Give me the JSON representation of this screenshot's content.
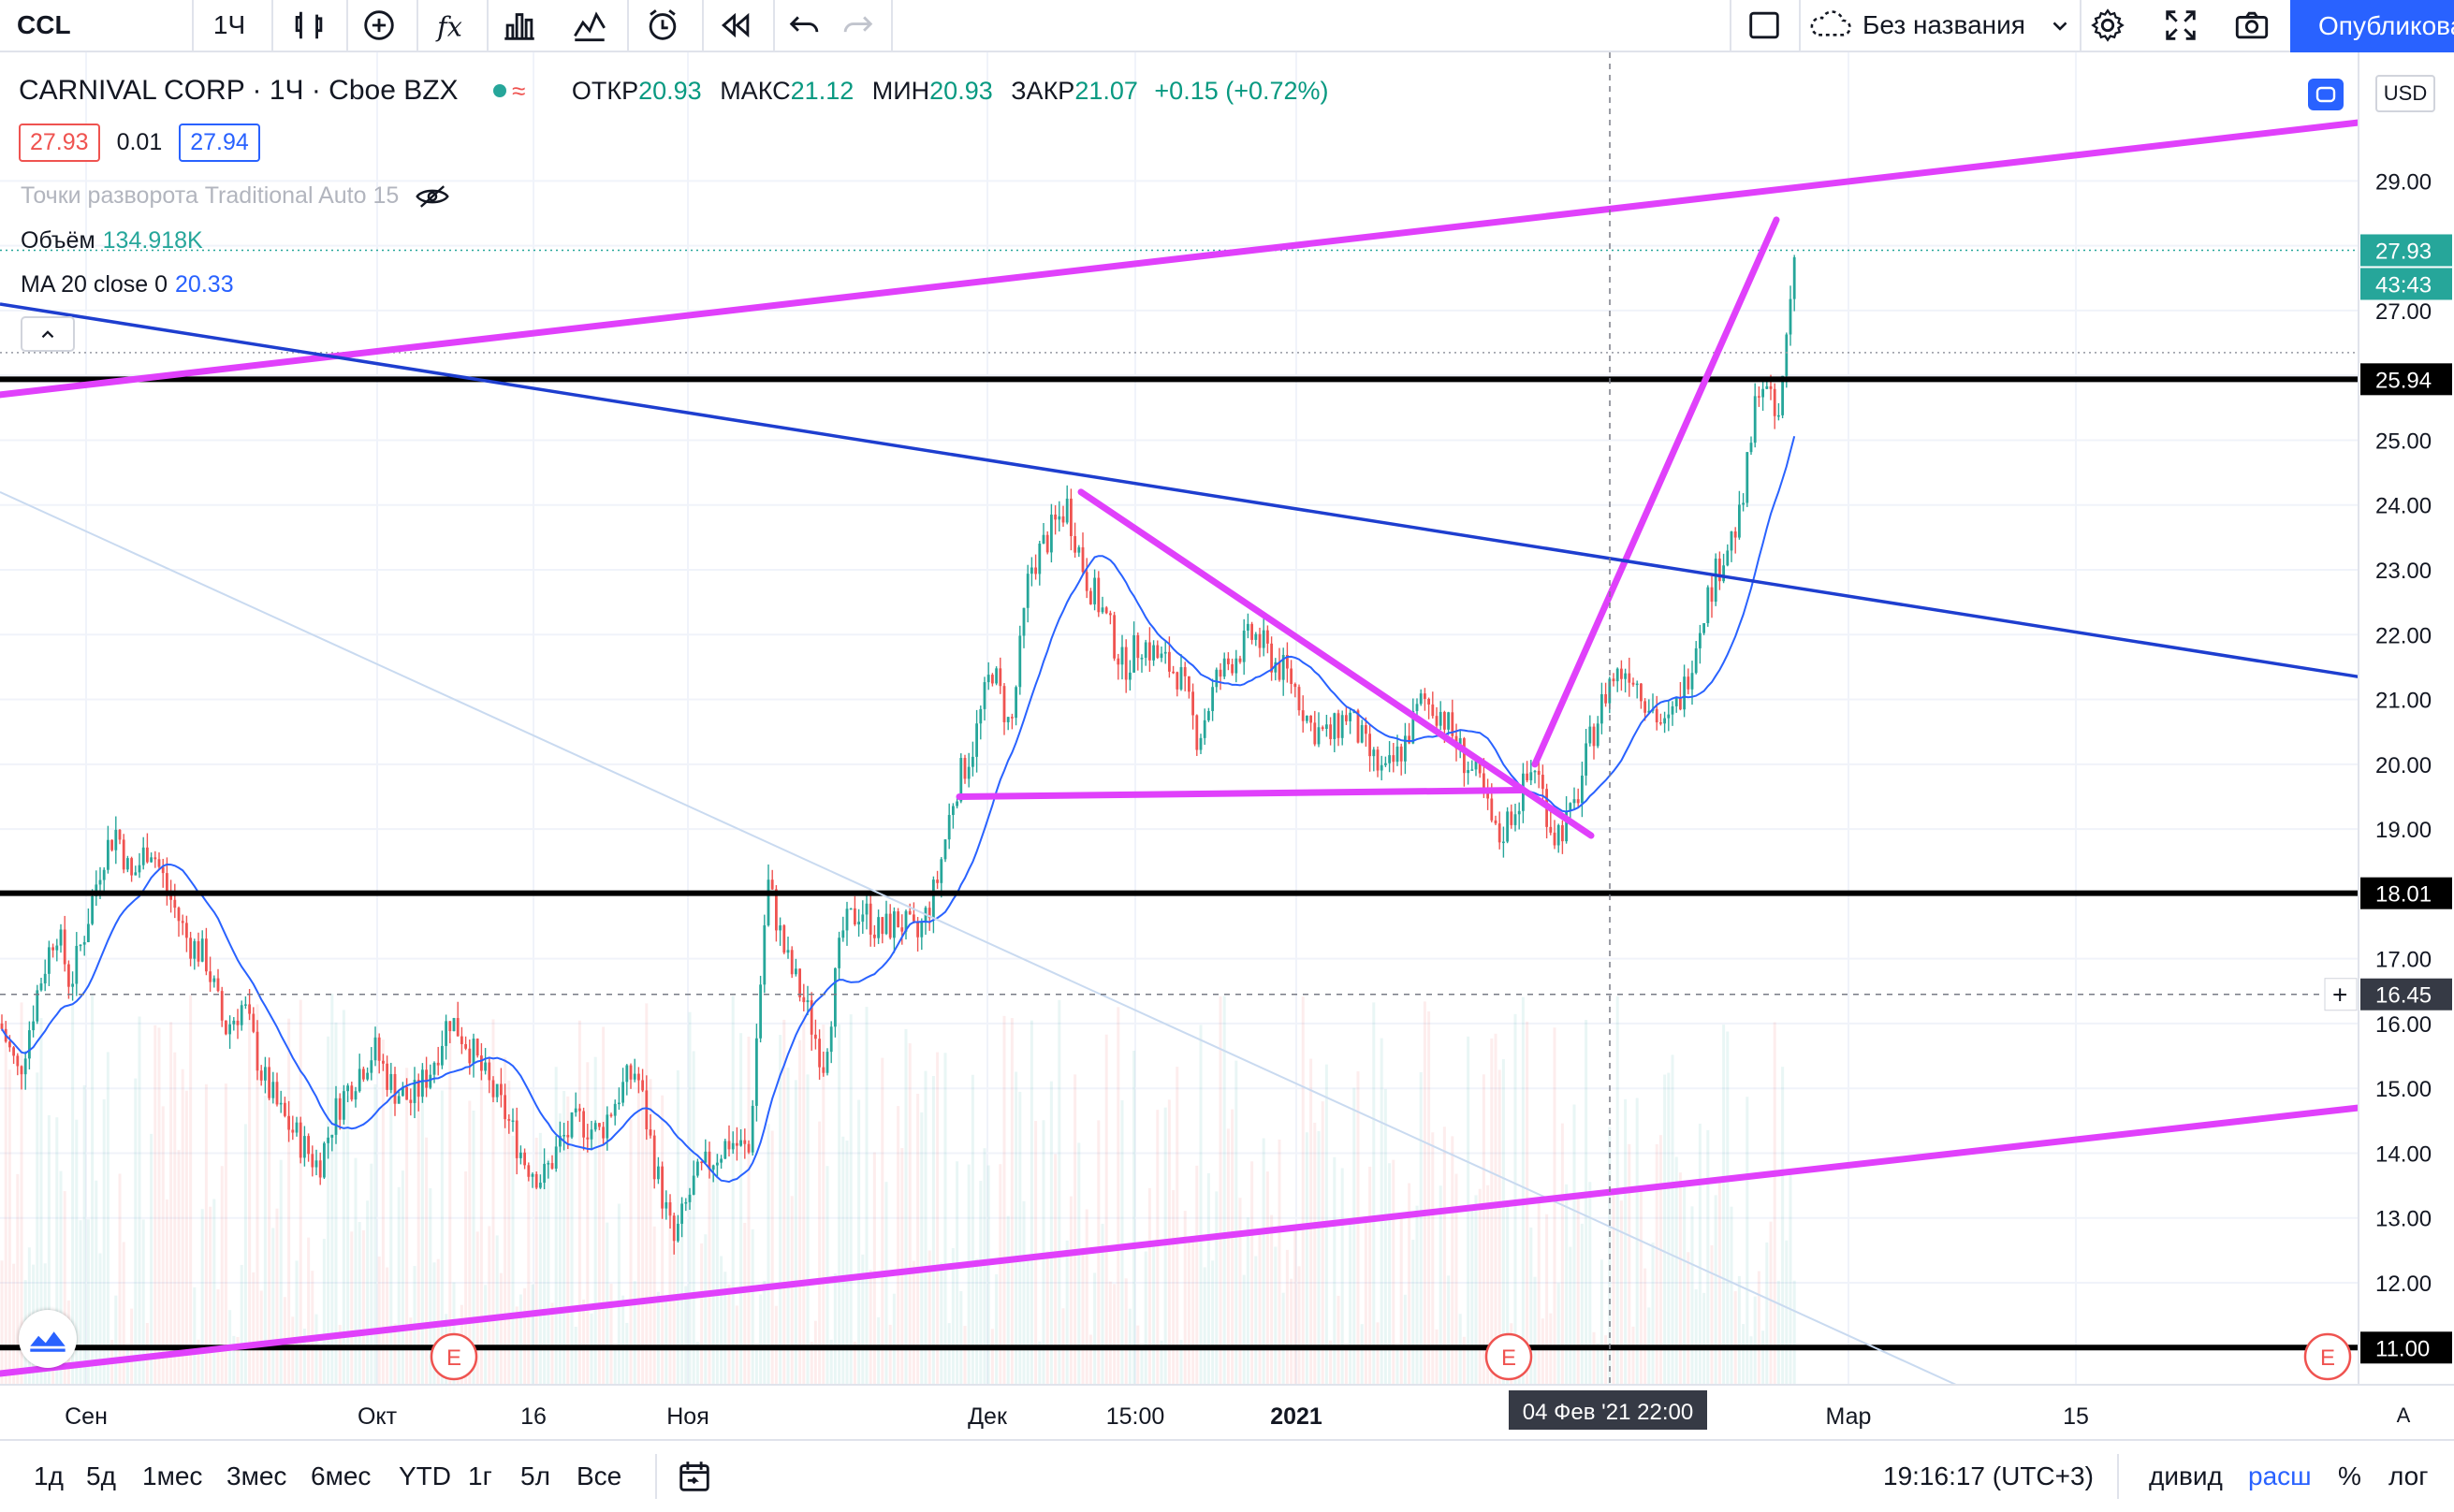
{
  "toolbar": {
    "symbol": "CCL",
    "interval": "1Ч",
    "layout_name": "Без названия",
    "publish_label": "Опубликовать",
    "icons": [
      "bar-style-icon",
      "compare-icon",
      "indicators-icon",
      "templates-icon",
      "alert-icon",
      "replay-icon",
      "undo-icon",
      "redo-icon",
      "layout-icon",
      "cloud-icon",
      "settings-icon",
      "fullscreen-icon",
      "screenshot-icon"
    ]
  },
  "legend": {
    "title": "CARNIVAL CORP · 1Ч · Cboe BZX",
    "open_label": "ОТКР",
    "open": "20.93",
    "high_label": "МАКС",
    "high": "21.12",
    "low_label": "МИН",
    "low": "20.93",
    "close_label": "ЗАКР",
    "close": "21.07",
    "change": "+0.15 (+0.72%)",
    "bid": "27.93",
    "spread": "0.01",
    "ask": "27.94"
  },
  "indicators": {
    "pivot": "Точки разворота Traditional Auto 15",
    "volume_label": "Объём",
    "volume_value": "134.918K",
    "ma_label": "MA 20 close 0",
    "ma_value": "20.33"
  },
  "price_scale": {
    "currency": "USD",
    "current_price": "27.93",
    "countdown": "43:43",
    "crosshair_price": "16.45",
    "hline_labels": [
      "25.94",
      "18.01",
      "11.00"
    ]
  },
  "crosshair": {
    "date_label": "04 Фев '21   22:00"
  },
  "chart_data": {
    "type": "candlestick",
    "y_ticks": [
      12,
      13,
      14,
      15,
      16,
      17,
      18,
      19,
      20,
      21,
      22,
      23,
      24,
      25,
      26,
      27,
      28,
      29
    ],
    "y_tick_labels": [
      "12.00",
      "13.00",
      "14.00",
      "15.00",
      "16.00",
      "17.00",
      "18.00",
      "19.00",
      "20.00",
      "21.00",
      "22.00",
      "23.00",
      "24.00",
      "25.00",
      "26.00",
      "27.00",
      "28.00",
      "29.00"
    ],
    "ylim": [
      10.6,
      29.9
    ],
    "x_tick_labels": [
      "Сен",
      "Окт",
      "16",
      "Ноя",
      "Дек",
      "15:00",
      "2021",
      "Мар",
      "15"
    ],
    "horizontal_levels": [
      25.94,
      18.01,
      11.0
    ],
    "price_path": [
      [
        0,
        16.0
      ],
      [
        20,
        15.2
      ],
      [
        40,
        16.5
      ],
      [
        60,
        17.5
      ],
      [
        75,
        16.6
      ],
      [
        90,
        17.4
      ],
      [
        110,
        18.6
      ],
      [
        125,
        19.0
      ],
      [
        140,
        18.2
      ],
      [
        160,
        18.8
      ],
      [
        180,
        18.0
      ],
      [
        200,
        17.3
      ],
      [
        220,
        17.0
      ],
      [
        240,
        15.9
      ],
      [
        260,
        16.3
      ],
      [
        280,
        15.2
      ],
      [
        300,
        14.6
      ],
      [
        320,
        14.2
      ],
      [
        340,
        13.8
      ],
      [
        360,
        14.7
      ],
      [
        380,
        15.2
      ],
      [
        400,
        15.6
      ],
      [
        420,
        15.0
      ],
      [
        440,
        14.8
      ],
      [
        460,
        15.3
      ],
      [
        480,
        16.1
      ],
      [
        500,
        15.7
      ],
      [
        520,
        15.1
      ],
      [
        540,
        14.6
      ],
      [
        560,
        13.9
      ],
      [
        580,
        13.6
      ],
      [
        600,
        14.2
      ],
      [
        620,
        14.5
      ],
      [
        640,
        14.3
      ],
      [
        660,
        14.9
      ],
      [
        680,
        15.3
      ],
      [
        700,
        13.8
      ],
      [
        720,
        12.6
      ],
      [
        740,
        13.5
      ],
      [
        760,
        13.9
      ],
      [
        780,
        14.2
      ],
      [
        800,
        14.0
      ],
      [
        820,
        18.2
      ],
      [
        840,
        17.0
      ],
      [
        860,
        16.3
      ],
      [
        880,
        15.4
      ],
      [
        900,
        17.4
      ],
      [
        920,
        17.8
      ],
      [
        940,
        17.4
      ],
      [
        960,
        17.6
      ],
      [
        980,
        17.3
      ],
      [
        1000,
        18.1
      ],
      [
        1020,
        19.6
      ],
      [
        1040,
        20.3
      ],
      [
        1060,
        21.5
      ],
      [
        1080,
        20.5
      ],
      [
        1100,
        23.0
      ],
      [
        1120,
        23.5
      ],
      [
        1140,
        24.0
      ],
      [
        1160,
        22.9
      ],
      [
        1180,
        22.3
      ],
      [
        1200,
        21.5
      ],
      [
        1220,
        21.9
      ],
      [
        1240,
        21.6
      ],
      [
        1260,
        21.4
      ],
      [
        1280,
        20.4
      ],
      [
        1300,
        21.3
      ],
      [
        1320,
        21.7
      ],
      [
        1340,
        22.0
      ],
      [
        1360,
        21.6
      ],
      [
        1380,
        21.3
      ],
      [
        1400,
        20.6
      ],
      [
        1420,
        20.4
      ],
      [
        1440,
        20.8
      ],
      [
        1460,
        20.2
      ],
      [
        1480,
        19.8
      ],
      [
        1500,
        20.3
      ],
      [
        1520,
        21.0
      ],
      [
        1540,
        20.8
      ],
      [
        1560,
        20.2
      ],
      [
        1580,
        19.7
      ],
      [
        1600,
        18.8
      ],
      [
        1620,
        19.4
      ],
      [
        1640,
        20.0
      ],
      [
        1660,
        18.9
      ],
      [
        1680,
        19.2
      ],
      [
        1700,
        20.4
      ],
      [
        1720,
        21.3
      ],
      [
        1740,
        21.5
      ],
      [
        1760,
        21.0
      ],
      [
        1780,
        20.5
      ],
      [
        1800,
        21.2
      ],
      [
        1820,
        22.4
      ],
      [
        1840,
        23.2
      ],
      [
        1860,
        23.8
      ],
      [
        1880,
        26.0
      ],
      [
        1900,
        25.2
      ],
      [
        1910,
        26.8
      ],
      [
        1918,
        27.93
      ]
    ]
  },
  "drawings": {
    "magenta_lines": [
      [
        [
          0,
          25.7
        ],
        [
          2520,
          29.9
        ]
      ],
      [
        [
          0,
          10.6
        ],
        [
          2520,
          14.7
        ]
      ],
      [
        [
          1155,
          24.2
        ],
        [
          1700,
          18.9
        ]
      ],
      [
        [
          1025,
          19.5
        ],
        [
          1625,
          19.6
        ]
      ],
      [
        [
          1640,
          20.0
        ],
        [
          1898,
          28.4
        ]
      ]
    ],
    "blue_lines": [
      [
        [
          0,
          27.1
        ],
        [
          2520,
          21.35
        ]
      ]
    ],
    "earnings_markers": [
      485,
      1612,
      2487
    ],
    "earnings_label": "E"
  },
  "bottombar": {
    "ranges": [
      "1д",
      "5д",
      "1мес",
      "3мес",
      "6мес",
      "YTD",
      "1г",
      "5л",
      "Все"
    ],
    "time": "19:16:17 (UTC+3)",
    "options": [
      "дивид",
      "расш",
      "%",
      "лог"
    ],
    "auto_label": "A"
  },
  "colors": {
    "up": "#26a69a",
    "down": "#ef5350",
    "ma": "#2962ff",
    "drawing_magenta": "#e040fb",
    "drawing_blue": "#1e3ecf",
    "hline": "#000000"
  }
}
